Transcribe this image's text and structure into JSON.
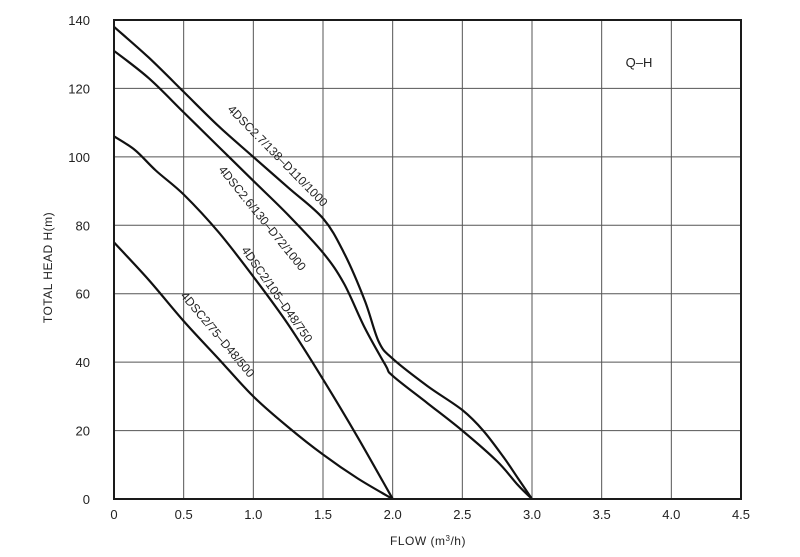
{
  "chart_data": {
    "type": "line",
    "title": "Q–H",
    "xlabel_main": "FLOW (m",
    "xlabel_sup": "3",
    "xlabel_tail": "/h)",
    "ylabel": "TOTAL HEAD  H(m)",
    "xlim": [
      0,
      4.5
    ],
    "ylim": [
      0,
      140
    ],
    "x_ticks": [
      0,
      0.5,
      1.0,
      1.5,
      2.0,
      2.5,
      3.0,
      3.5,
      4.0,
      4.5
    ],
    "x_tick_labels": [
      "0",
      "0.5",
      "1.0",
      "1.5",
      "2.0",
      "2.5",
      "3.0",
      "3.5",
      "4.0",
      "4.5"
    ],
    "y_ticks": [
      0,
      20,
      40,
      60,
      80,
      100,
      120,
      140
    ],
    "y_tick_labels": [
      "0",
      "20",
      "40",
      "60",
      "80",
      "100",
      "120",
      "140"
    ],
    "grid": true,
    "series": [
      {
        "name": "4DSC2.7/138–D110/1000",
        "points": [
          [
            0,
            138
          ],
          [
            0.25,
            129
          ],
          [
            0.5,
            119
          ],
          [
            0.75,
            109
          ],
          [
            1.0,
            100
          ],
          [
            1.25,
            91
          ],
          [
            1.5,
            82
          ],
          [
            1.65,
            72
          ],
          [
            1.8,
            58
          ],
          [
            1.9,
            46
          ],
          [
            2.0,
            41
          ],
          [
            2.25,
            33
          ],
          [
            2.5,
            26
          ],
          [
            2.65,
            20
          ],
          [
            2.8,
            12
          ],
          [
            2.9,
            6
          ],
          [
            3.0,
            0
          ]
        ]
      },
      {
        "name": "4DSC2.6/130–D72/1000",
        "points": [
          [
            0,
            131
          ],
          [
            0.25,
            123
          ],
          [
            0.5,
            113
          ],
          [
            0.75,
            103
          ],
          [
            1.0,
            93
          ],
          [
            1.25,
            83
          ],
          [
            1.5,
            72
          ],
          [
            1.65,
            63
          ],
          [
            1.8,
            50
          ],
          [
            1.95,
            39
          ],
          [
            2.0,
            36
          ],
          [
            2.25,
            28
          ],
          [
            2.5,
            20
          ],
          [
            2.75,
            11
          ],
          [
            2.9,
            4
          ],
          [
            3.0,
            0
          ]
        ]
      },
      {
        "name": "4DSC2/105–D48/750",
        "points": [
          [
            0,
            106
          ],
          [
            0.15,
            102
          ],
          [
            0.3,
            96
          ],
          [
            0.5,
            89
          ],
          [
            0.75,
            78
          ],
          [
            1.0,
            65
          ],
          [
            1.25,
            51
          ],
          [
            1.5,
            35
          ],
          [
            1.75,
            18
          ],
          [
            2.0,
            0
          ]
        ]
      },
      {
        "name": "4DSC2/75–D48/500",
        "points": [
          [
            0,
            75
          ],
          [
            0.25,
            64
          ],
          [
            0.5,
            52
          ],
          [
            0.75,
            41
          ],
          [
            1.0,
            30
          ],
          [
            1.25,
            21
          ],
          [
            1.5,
            13
          ],
          [
            1.75,
            6
          ],
          [
            2.0,
            0
          ]
        ]
      }
    ]
  }
}
